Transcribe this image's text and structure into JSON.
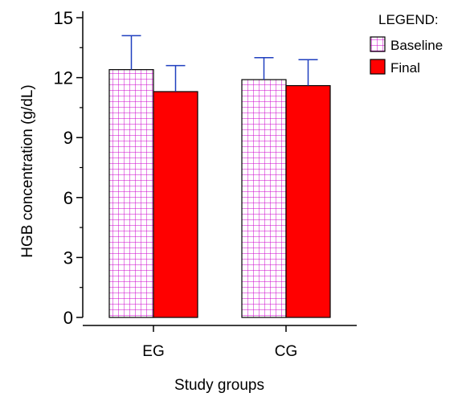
{
  "chart_data": {
    "type": "bar",
    "title": "",
    "categories": [
      "EG",
      "CG"
    ],
    "series": [
      {
        "name": "Baseline",
        "values": [
          12.4,
          11.9
        ],
        "error": [
          1.7,
          1.1
        ],
        "color": "#cc00cc",
        "fill": "grid-pattern"
      },
      {
        "name": "Final",
        "values": [
          11.3,
          11.6
        ],
        "error": [
          1.3,
          1.3
        ],
        "color": "#ff0000",
        "fill": "solid"
      }
    ],
    "xlabel": "Study groups",
    "ylabel": "HGB concentration (g/dL)",
    "ylim": [
      0,
      15
    ],
    "yticks": [
      0,
      3,
      6,
      9,
      12,
      15
    ],
    "legend": {
      "title": "LEGEND:",
      "placement": "top-right"
    },
    "error_bar_color": "#1f3fbf",
    "grid": false
  }
}
